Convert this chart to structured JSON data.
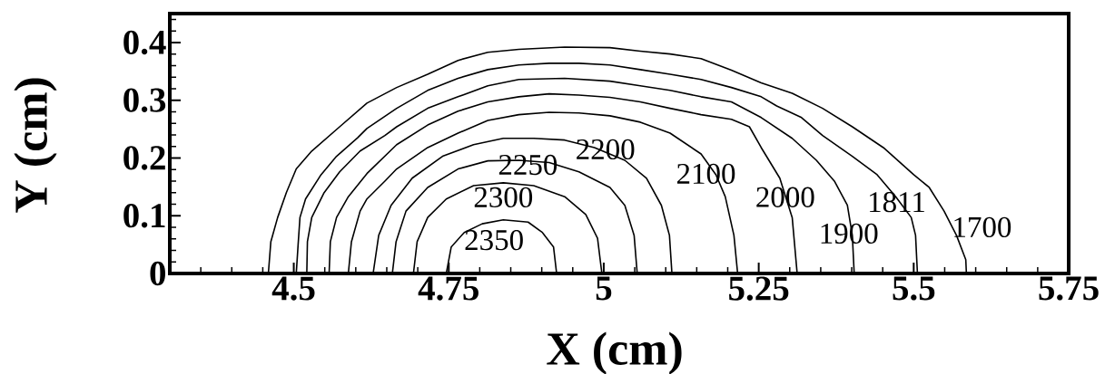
{
  "chart_data": {
    "type": "line",
    "xlabel": "X (cm)",
    "ylabel": "Y (cm)",
    "xlim": [
      4.3,
      5.75
    ],
    "ylim": [
      0,
      0.45
    ],
    "xticks": [
      {
        "value": 4.35,
        "label": null
      },
      {
        "value": 4.4,
        "label": null
      },
      {
        "value": 4.45,
        "label": null
      },
      4.5,
      {
        "value": 4.55,
        "label": null
      },
      {
        "value": 4.6,
        "label": null
      },
      {
        "value": 4.65,
        "label": null
      },
      {
        "value": 4.7,
        "label": null
      },
      4.75,
      {
        "value": 4.8,
        "label": null
      },
      {
        "value": 4.85,
        "label": null
      },
      {
        "value": 4.9,
        "label": null
      },
      {
        "value": 4.95,
        "label": null
      },
      5,
      {
        "value": 5.05,
        "label": null
      },
      {
        "value": 5.1,
        "label": null
      },
      {
        "value": 5.15,
        "label": null
      },
      {
        "value": 5.2,
        "label": null
      },
      5.25,
      {
        "value": 5.3,
        "label": null
      },
      {
        "value": 5.35,
        "label": null
      },
      {
        "value": 5.4,
        "label": null
      },
      {
        "value": 5.45,
        "label": null
      },
      5.5,
      {
        "value": 5.55,
        "label": null
      },
      {
        "value": 5.6,
        "label": null
      },
      {
        "value": 5.65,
        "label": null
      },
      {
        "value": 5.7,
        "label": null
      },
      5.75
    ],
    "yticks": [
      0,
      {
        "value": 0.02,
        "label": null
      },
      {
        "value": 0.04,
        "label": null
      },
      {
        "value": 0.06,
        "label": null
      },
      {
        "value": 0.08,
        "label": null
      },
      0.1,
      {
        "value": 0.12,
        "label": null
      },
      {
        "value": 0.14,
        "label": null
      },
      {
        "value": 0.16,
        "label": null
      },
      {
        "value": 0.18,
        "label": null
      },
      0.2,
      {
        "value": 0.22,
        "label": null
      },
      {
        "value": 0.24,
        "label": null
      },
      {
        "value": 0.26,
        "label": null
      },
      {
        "value": 0.28,
        "label": null
      },
      0.3,
      {
        "value": 0.32,
        "label": null
      },
      {
        "value": 0.34,
        "label": null
      },
      {
        "value": 0.36,
        "label": null
      },
      {
        "value": 0.38,
        "label": null
      },
      0.4,
      {
        "value": 0.42,
        "label": null
      },
      {
        "value": 0.44,
        "label": null
      }
    ],
    "marker": "none",
    "line_style": "solid",
    "series": [
      {
        "name": "1700",
        "color": "#000000",
        "x": [
          4.459,
          4.463,
          4.474,
          4.488,
          4.504,
          4.529,
          4.574,
          4.618,
          4.666,
          4.716,
          4.765,
          4.813,
          4.863,
          4.937,
          5.01,
          5.059,
          5.107,
          5.157,
          5.206,
          5.254,
          5.304,
          5.353,
          5.401,
          5.451,
          5.5,
          5.525,
          5.549,
          5.569,
          5.584,
          5.585
        ],
        "values": [
          0,
          0.055,
          0.097,
          0.14,
          0.181,
          0.212,
          0.254,
          0.295,
          0.322,
          0.345,
          0.369,
          0.383,
          0.388,
          0.392,
          0.391,
          0.385,
          0.38,
          0.372,
          0.352,
          0.33,
          0.312,
          0.286,
          0.254,
          0.218,
          0.171,
          0.149,
          0.108,
          0.066,
          0.024,
          0
        ]
      },
      {
        "name": "1811",
        "color": "#000000",
        "x": [
          4.504,
          4.507,
          4.51,
          4.519,
          4.544,
          4.569,
          4.603,
          4.618,
          4.666,
          4.716,
          4.765,
          4.813,
          4.863,
          4.912,
          4.96,
          5.01,
          5.059,
          5.107,
          5.157,
          5.206,
          5.254,
          5.279,
          5.319,
          5.353,
          5.401,
          5.441,
          5.471,
          5.496,
          5.503,
          5.506
        ],
        "values": [
          0,
          0.05,
          0.097,
          0.129,
          0.171,
          0.203,
          0.235,
          0.251,
          0.286,
          0.317,
          0.338,
          0.353,
          0.361,
          0.364,
          0.364,
          0.361,
          0.353,
          0.345,
          0.336,
          0.322,
          0.306,
          0.29,
          0.27,
          0.239,
          0.203,
          0.171,
          0.133,
          0.097,
          0.066,
          0
        ]
      },
      {
        "name": "1900",
        "color": "#000000",
        "x": [
          4.521,
          4.522,
          4.529,
          4.549,
          4.574,
          4.607,
          4.647,
          4.666,
          4.716,
          4.765,
          4.813,
          4.863,
          4.937,
          5.01,
          5.059,
          5.107,
          5.157,
          5.206,
          5.254,
          5.304,
          5.343,
          5.372,
          5.393,
          5.401,
          5.404
        ],
        "values": [
          0,
          0.055,
          0.097,
          0.14,
          0.176,
          0.212,
          0.239,
          0.254,
          0.286,
          0.306,
          0.325,
          0.336,
          0.338,
          0.333,
          0.325,
          0.317,
          0.306,
          0.297,
          0.27,
          0.234,
          0.196,
          0.16,
          0.118,
          0.066,
          0
        ]
      },
      {
        "name": "2000",
        "color": "#000000",
        "x": [
          4.557,
          4.559,
          4.569,
          4.588,
          4.618,
          4.666,
          4.716,
          4.765,
          4.813,
          4.863,
          4.912,
          4.96,
          5.01,
          5.059,
          5.107,
          5.157,
          5.206,
          5.235,
          5.254,
          5.284,
          5.304,
          5.312
        ],
        "values": [
          0,
          0.055,
          0.097,
          0.133,
          0.173,
          0.223,
          0.257,
          0.281,
          0.297,
          0.306,
          0.311,
          0.309,
          0.305,
          0.297,
          0.286,
          0.275,
          0.267,
          0.254,
          0.218,
          0.165,
          0.097,
          0
        ]
      },
      {
        "name": "2100",
        "color": "#000000",
        "x": [
          4.588,
          4.593,
          4.607,
          4.618,
          4.647,
          4.666,
          4.716,
          4.765,
          4.813,
          4.863,
          4.912,
          4.96,
          5.01,
          5.059,
          5.107,
          5.157,
          5.181,
          5.196,
          5.21,
          5.216
        ],
        "values": [
          0,
          0.055,
          0.108,
          0.129,
          0.16,
          0.181,
          0.218,
          0.243,
          0.265,
          0.275,
          0.279,
          0.278,
          0.273,
          0.262,
          0.243,
          0.207,
          0.171,
          0.133,
          0.066,
          0
        ]
      },
      {
        "name": "2200",
        "color": "#000000",
        "x": [
          4.628,
          4.637,
          4.657,
          4.691,
          4.74,
          4.79,
          4.838,
          4.887,
          4.937,
          4.985,
          5.034,
          5.069,
          5.093,
          5.106,
          5.11
        ],
        "values": [
          0,
          0.066,
          0.118,
          0.165,
          0.203,
          0.223,
          0.234,
          0.234,
          0.231,
          0.218,
          0.196,
          0.165,
          0.118,
          0.066,
          0
        ]
      },
      {
        "name": "2250",
        "color": "#000000",
        "x": [
          4.659,
          4.665,
          4.681,
          4.716,
          4.765,
          4.813,
          4.863,
          4.912,
          4.96,
          5.01,
          5.034,
          5.049,
          5.054
        ],
        "values": [
          0,
          0.055,
          0.108,
          0.149,
          0.181,
          0.195,
          0.196,
          0.192,
          0.176,
          0.149,
          0.118,
          0.066,
          0
        ]
      },
      {
        "name": "2300",
        "color": "#000000",
        "x": [
          4.693,
          4.699,
          4.716,
          4.746,
          4.79,
          4.838,
          4.887,
          4.937,
          4.971,
          4.99,
          4.997
        ],
        "values": [
          0,
          0.055,
          0.097,
          0.129,
          0.152,
          0.157,
          0.152,
          0.133,
          0.102,
          0.061,
          0
        ]
      },
      {
        "name": "2350",
        "color": "#000000",
        "x": [
          4.746,
          4.754,
          4.775,
          4.804,
          4.838,
          4.878,
          4.901,
          4.919,
          4.924
        ],
        "values": [
          0,
          0.046,
          0.071,
          0.086,
          0.093,
          0.089,
          0.071,
          0.046,
          0
        ]
      }
    ]
  }
}
